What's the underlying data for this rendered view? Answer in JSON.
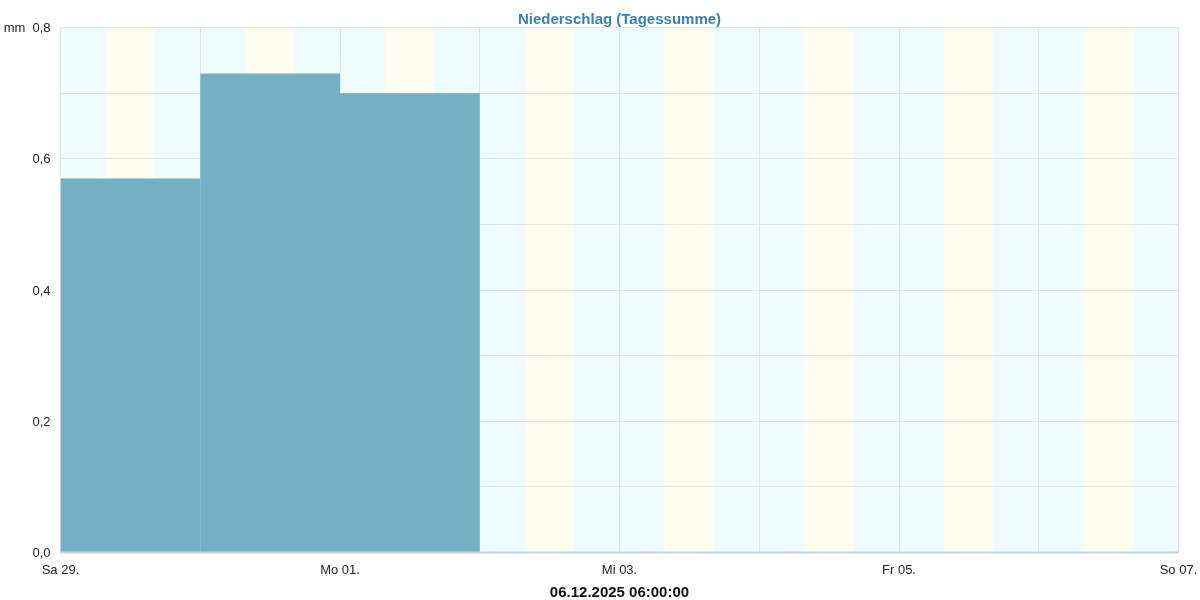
{
  "chart_data": {
    "type": "bar",
    "title": "Niederschlag (Tagessumme)",
    "ylabel": "mm",
    "annotations": [
      "06.12.2025 06:00:00"
    ],
    "x": [
      "2025-11-29T12:00",
      "2025-11-30T12:00",
      "2025-12-01T12:00"
    ],
    "values": [
      0.57,
      0.73,
      0.7
    ],
    "color": "#74b0c4",
    "xlim": [
      "2025-11-29",
      "2025-12-07"
    ],
    "xticks": [
      {
        "value": "2025-11-29",
        "label": "Sa 29."
      },
      {
        "value": "2025-11-30",
        "label": null
      },
      {
        "value": "2025-12-01",
        "label": "Mo 01."
      },
      {
        "value": "2025-12-02",
        "label": null
      },
      {
        "value": "2025-12-03",
        "label": "Mi 03."
      },
      {
        "value": "2025-12-04",
        "label": null
      },
      {
        "value": "2025-12-05",
        "label": "Fr 05."
      },
      {
        "value": "2025-12-06",
        "label": null
      },
      {
        "value": "2025-12-07",
        "label": "So 07."
      }
    ],
    "ylim": [
      0,
      0.8
    ],
    "yticks": [
      {
        "value": 0,
        "label": "0,0"
      },
      {
        "value": 0.1,
        "label": null
      },
      {
        "value": 0.2,
        "label": "0,2"
      },
      {
        "value": 0.3,
        "label": null
      },
      {
        "value": 0.4,
        "label": "0,4"
      },
      {
        "value": 0.5,
        "label": null
      },
      {
        "value": 0.6,
        "label": "0,6"
      },
      {
        "value": 0.7,
        "label": null
      },
      {
        "value": 0.8,
        "label": "0,8"
      }
    ],
    "grid": true,
    "bands": [
      {
        "axis": "x",
        "from": "2025-11-29T00:00",
        "to": "2025-11-29T07:45",
        "color": "#eefcfd"
      },
      {
        "axis": "x",
        "from": "2025-11-29T07:45",
        "to": "2025-11-29T16:05",
        "color": "#fefdee"
      },
      {
        "axis": "x",
        "from": "2025-11-29T16:05",
        "to": "2025-11-30T07:45",
        "color": "#eefcfd"
      },
      {
        "axis": "x",
        "from": "2025-11-30T07:45",
        "to": "2025-11-30T16:05",
        "color": "#fefdee"
      },
      {
        "axis": "x",
        "from": "2025-11-30T16:05",
        "to": "2025-12-01T07:45",
        "color": "#eefcfd"
      },
      {
        "axis": "x",
        "from": "2025-12-01T07:45",
        "to": "2025-12-01T16:05",
        "color": "#fefdee"
      },
      {
        "axis": "x",
        "from": "2025-12-01T16:05",
        "to": "2025-12-02T07:45",
        "color": "#eefcfd"
      },
      {
        "axis": "x",
        "from": "2025-12-02T07:45",
        "to": "2025-12-02T16:05",
        "color": "#fefdee"
      },
      {
        "axis": "x",
        "from": "2025-12-02T16:05",
        "to": "2025-12-03T07:45",
        "color": "#eefcfd"
      },
      {
        "axis": "x",
        "from": "2025-12-03T07:45",
        "to": "2025-12-03T16:05",
        "color": "#fefdee"
      },
      {
        "axis": "x",
        "from": "2025-12-03T16:05",
        "to": "2025-12-04T07:45",
        "color": "#eefcfd"
      },
      {
        "axis": "x",
        "from": "2025-12-04T07:45",
        "to": "2025-12-04T16:05",
        "color": "#fefdee"
      },
      {
        "axis": "x",
        "from": "2025-12-04T16:05",
        "to": "2025-12-05T07:45",
        "color": "#eefcfd"
      },
      {
        "axis": "x",
        "from": "2025-12-05T07:45",
        "to": "2025-12-05T16:05",
        "color": "#fefdee"
      },
      {
        "axis": "x",
        "from": "2025-12-05T16:05",
        "to": "2025-12-06T07:45",
        "color": "#eefcfd"
      },
      {
        "axis": "x",
        "from": "2025-12-06T07:45",
        "to": "2025-12-06T16:05",
        "color": "#fefdee"
      },
      {
        "axis": "x",
        "from": "2025-12-06T16:05",
        "to": "2025-12-07T00:00",
        "color": "#eefcfd"
      }
    ]
  }
}
